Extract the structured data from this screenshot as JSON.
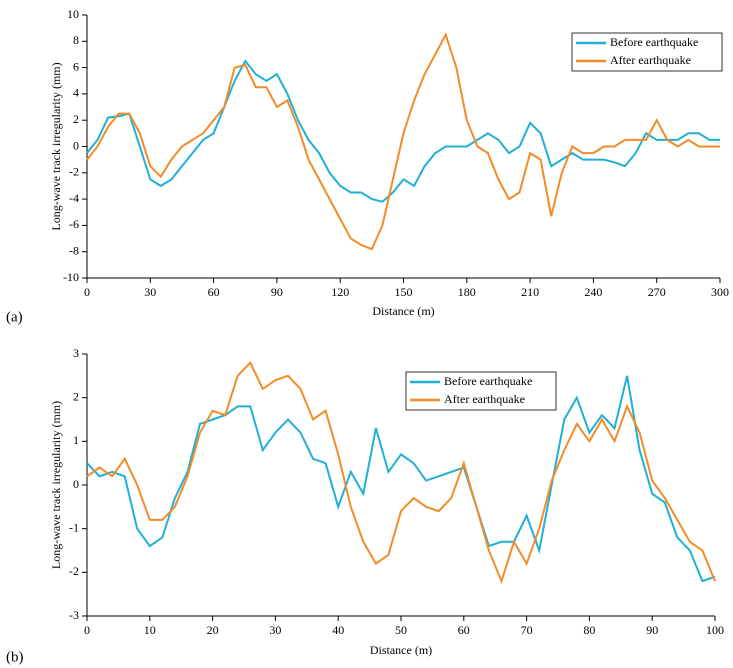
{
  "chart_data": [
    {
      "type": "line",
      "label": "(a)",
      "xlabel": "Distance (m)",
      "ylabel": "Long-wave track irregularity (mm)",
      "x": [
        0,
        5,
        10,
        15,
        20,
        25,
        30,
        35,
        40,
        45,
        50,
        55,
        60,
        65,
        70,
        75,
        80,
        85,
        90,
        95,
        100,
        105,
        110,
        115,
        120,
        125,
        130,
        135,
        140,
        145,
        150,
        155,
        160,
        165,
        170,
        175,
        180,
        185,
        190,
        195,
        200,
        205,
        210,
        215,
        220,
        225,
        230,
        235,
        240,
        245,
        250,
        255,
        260,
        265,
        270,
        275,
        280,
        285,
        290,
        295,
        300
      ],
      "series": [
        {
          "name": "Before earthquake",
          "color": "#1fb0d6",
          "values": [
            -0.5,
            0.5,
            2.2,
            2.3,
            2.5,
            0,
            -2.5,
            -3,
            -2.5,
            -1.5,
            -0.5,
            0.5,
            1,
            3,
            5,
            6.5,
            5.5,
            5,
            5.5,
            4,
            2,
            0.5,
            -0.5,
            -2,
            -3,
            -3.5,
            -3.5,
            -4,
            -4.2,
            -3.5,
            -2.5,
            -3,
            -1.5,
            -0.5,
            0,
            0,
            0,
            0.5,
            1,
            0.5,
            -0.5,
            0,
            1.8,
            1,
            -1.5,
            -1,
            -0.5,
            -1,
            -1,
            -1,
            -1.2,
            -1.5,
            -0.5,
            1,
            0.5,
            0.5,
            0.5,
            1,
            1,
            0.5,
            0.5
          ]
        },
        {
          "name": "After earthquake",
          "color": "#f28c28",
          "values": [
            -1,
            0,
            1.5,
            2.5,
            2.5,
            1,
            -1.5,
            -2.3,
            -1,
            0,
            0.5,
            1,
            2,
            3,
            6,
            6.2,
            4.5,
            4.5,
            3,
            3.5,
            1.5,
            -1,
            -2.5,
            -4,
            -5.5,
            -7,
            -7.5,
            -7.8,
            -6,
            -2.5,
            1,
            3.5,
            5.5,
            7,
            8.5,
            6,
            2,
            0,
            -0.5,
            -2.5,
            -4,
            -3.5,
            -0.5,
            -1,
            -5.3,
            -2,
            0,
            -0.5,
            -0.5,
            0,
            0,
            0.5,
            0.5,
            0.5,
            2,
            0.5,
            0,
            0.5,
            0,
            0,
            0
          ]
        }
      ],
      "xlim": [
        0,
        300
      ],
      "xticks": [
        0,
        30,
        60,
        90,
        120,
        150,
        180,
        210,
        240,
        270,
        300
      ],
      "ylim": [
        -10,
        10
      ],
      "yticks": [
        -10,
        -8,
        -6,
        -4,
        -2,
        0,
        2,
        4,
        6,
        8,
        10
      ],
      "legend": "upper right"
    },
    {
      "type": "line",
      "label": "(b)",
      "xlabel": "Distance (m)",
      "ylabel": "Long-wave track irregularity (mm)",
      "x": [
        0,
        2,
        4,
        6,
        8,
        10,
        12,
        14,
        16,
        18,
        20,
        22,
        24,
        26,
        28,
        30,
        32,
        34,
        36,
        38,
        40,
        42,
        44,
        46,
        48,
        50,
        52,
        54,
        56,
        58,
        60,
        62,
        64,
        66,
        68,
        70,
        72,
        74,
        76,
        78,
        80,
        82,
        84,
        86,
        88,
        90,
        92,
        94,
        96,
        98,
        100
      ],
      "series": [
        {
          "name": "Before earthquake",
          "color": "#1fb0d6",
          "values": [
            0.5,
            0.2,
            0.3,
            0.2,
            -1.0,
            -1.4,
            -1.2,
            -0.3,
            0.3,
            1.4,
            1.5,
            1.6,
            1.8,
            1.8,
            0.8,
            1.2,
            1.5,
            1.2,
            0.6,
            0.5,
            -0.5,
            0.3,
            -0.2,
            1.3,
            0.3,
            0.7,
            0.5,
            0.1,
            0.2,
            0.3,
            0.4,
            -0.5,
            -1.4,
            -1.3,
            -1.3,
            -0.7,
            -1.5,
            0,
            1.5,
            2.0,
            1.2,
            1.6,
            1.3,
            2.5,
            0.8,
            -0.2,
            -0.4,
            -1.2,
            -1.5,
            -2.2,
            -2.1
          ]
        },
        {
          "name": "After earthquake",
          "color": "#f28c28",
          "values": [
            0.2,
            0.4,
            0.2,
            0.6,
            0,
            -0.8,
            -0.8,
            -0.5,
            0.2,
            1.2,
            1.7,
            1.6,
            2.5,
            2.8,
            2.2,
            2.4,
            2.5,
            2.2,
            1.5,
            1.7,
            0.7,
            -0.5,
            -1.3,
            -1.8,
            -1.6,
            -0.6,
            -0.3,
            -0.5,
            -0.6,
            -0.3,
            0.5,
            -0.5,
            -1.5,
            -2.2,
            -1.3,
            -1.8,
            -1.0,
            0.1,
            0.8,
            1.4,
            1.0,
            1.5,
            1.0,
            1.8,
            1.2,
            0.1,
            -0.3,
            -0.8,
            -1.3,
            -1.5,
            -2.2
          ]
        }
      ],
      "xlim": [
        0,
        100
      ],
      "xticks": [
        0,
        10,
        20,
        30,
        40,
        50,
        60,
        70,
        80,
        90,
        100
      ],
      "ylim": [
        -3,
        3
      ],
      "yticks": [
        -3,
        -2,
        -1,
        0,
        1,
        2,
        3
      ],
      "legend": "upper center"
    }
  ]
}
